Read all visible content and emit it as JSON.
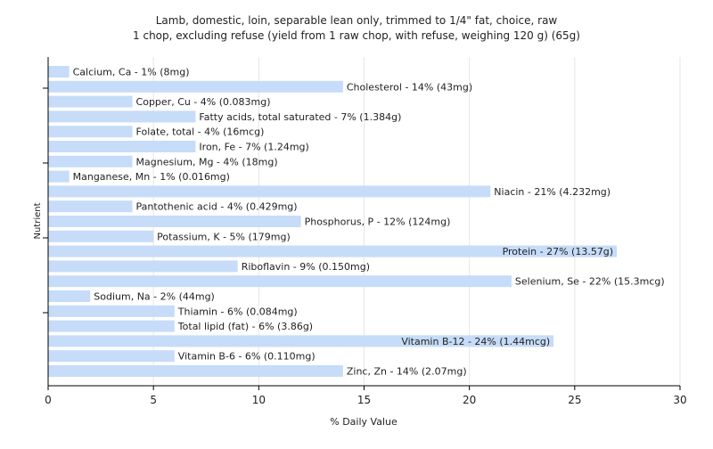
{
  "chart_data": {
    "type": "bar",
    "orientation": "horizontal",
    "title": "Lamb, domestic, loin, separable lean only, trimmed to 1/4\" fat, choice, raw",
    "subtitle": "1 chop, excluding refuse (yield from 1 raw chop, with refuse, weighing 120 g) (65g)",
    "xlabel": "% Daily Value",
    "ylabel": "Nutrient",
    "xlim": [
      0,
      30
    ],
    "xticks": [
      0,
      5,
      10,
      15,
      20,
      25,
      30
    ],
    "grid": true,
    "bar_color": "#c6dcf8",
    "categories": [
      "Calcium, Ca",
      "Cholesterol",
      "Copper, Cu",
      "Fatty acids, total saturated",
      "Folate, total",
      "Iron, Fe",
      "Magnesium, Mg",
      "Manganese, Mn",
      "Niacin",
      "Pantothenic acid",
      "Phosphorus, P",
      "Potassium, K",
      "Protein",
      "Riboflavin",
      "Selenium, Se",
      "Sodium, Na",
      "Thiamin",
      "Total lipid (fat)",
      "Vitamin B-12",
      "Vitamin B-6",
      "Zinc, Zn"
    ],
    "values": [
      1,
      14,
      4,
      7,
      4,
      7,
      4,
      1,
      21,
      4,
      12,
      5,
      27,
      9,
      22,
      2,
      6,
      6,
      24,
      6,
      14
    ],
    "labels": [
      "Calcium, Ca - 1% (8mg)",
      "Cholesterol - 14% (43mg)",
      "Copper, Cu - 4% (0.083mg)",
      "Fatty acids, total saturated - 7% (1.384g)",
      "Folate, total - 4% (16mcg)",
      "Iron, Fe - 7% (1.24mg)",
      "Magnesium, Mg - 4% (18mg)",
      "Manganese, Mn - 1% (0.016mg)",
      "Niacin - 21% (4.232mg)",
      "Pantothenic acid - 4% (0.429mg)",
      "Phosphorus, P - 12% (124mg)",
      "Potassium, K - 5% (179mg)",
      "Protein - 27% (13.57g)",
      "Riboflavin - 9% (0.150mg)",
      "Selenium, Se - 22% (15.3mcg)",
      "Sodium, Na - 2% (44mg)",
      "Thiamin - 6% (0.084mg)",
      "Total lipid (fat) - 6% (3.86g)",
      "Vitamin B-12 - 24% (1.44mcg)",
      "Vitamin B-6 - 6% (0.110mg)",
      "Zinc, Zn - 14% (2.07mg)"
    ]
  }
}
